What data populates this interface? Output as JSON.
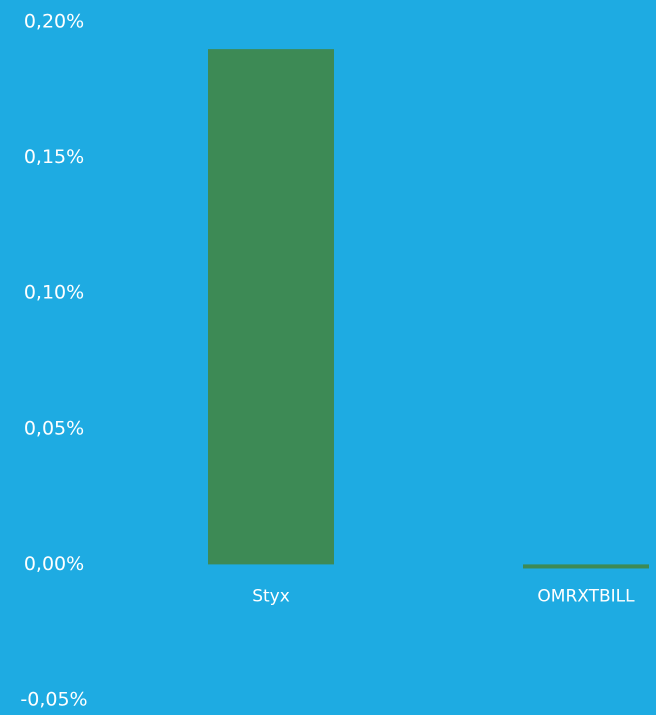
{
  "chart_data": {
    "type": "bar",
    "categories": [
      "Styx",
      "OMRXTBILL"
    ],
    "series": [
      {
        "values": [
          0.19,
          -0.0015
        ],
        "color": "#3D8A55"
      }
    ],
    "y_ticks": [
      "0,20%",
      "0,15%",
      "0,10%",
      "0,05%",
      "0,00%",
      "-0,05%"
    ],
    "ylim": [
      -0.05,
      0.2
    ],
    "grid": false,
    "legend": "none",
    "background": "#1EABE2",
    "text_color": "#FFFFFF"
  }
}
